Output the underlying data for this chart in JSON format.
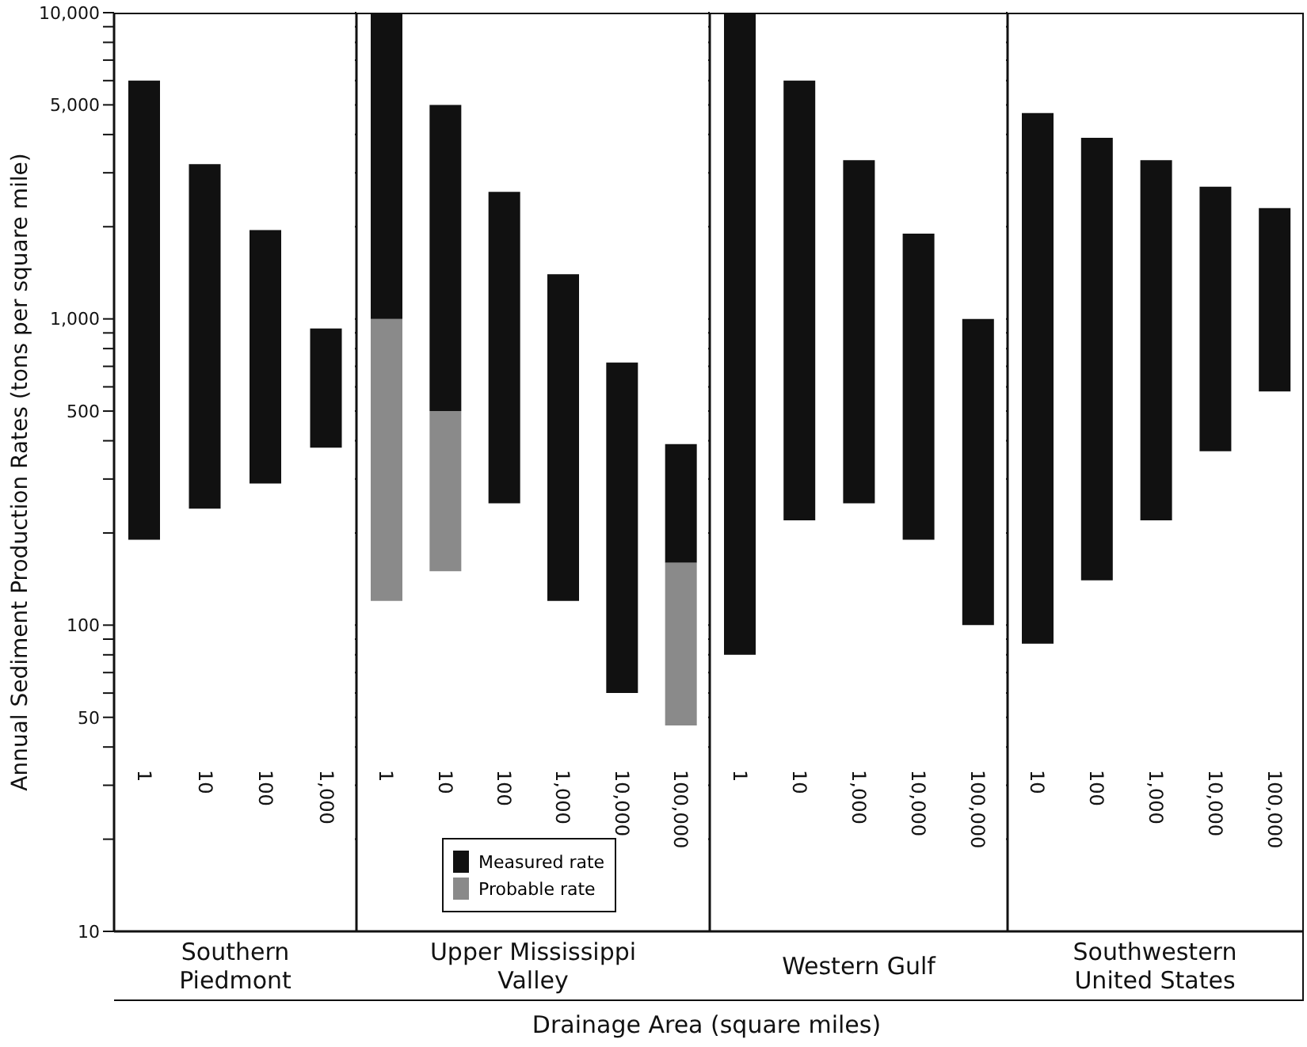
{
  "chart_data": [
    {
      "type": "bar",
      "ylabel": "Annual Sediment Production Rates (tons per square mile)",
      "xlabel": "Southern Piedmont",
      "categories": [
        "1",
        "10",
        "100",
        "1,000"
      ],
      "base": [
        190,
        240,
        290,
        380
      ],
      "values": [
        5810,
        2960,
        1660,
        550
      ],
      "color": "#111111",
      "log": true,
      "ylim": [
        10,
        10000
      ],
      "yticks": [
        10,
        {
          "value": 20,
          "label": null
        },
        {
          "value": 30,
          "label": null
        },
        {
          "value": 40,
          "label": null
        },
        50,
        {
          "value": 60,
          "label": null
        },
        {
          "value": 70,
          "label": null
        },
        {
          "value": 80,
          "label": null
        },
        {
          "value": 90,
          "label": null
        },
        100,
        {
          "value": 200,
          "label": null
        },
        {
          "value": 300,
          "label": null
        },
        {
          "value": 400,
          "label": null
        },
        500,
        {
          "value": 600,
          "label": null
        },
        {
          "value": 700,
          "label": null
        },
        {
          "value": 800,
          "label": null
        },
        {
          "value": 900,
          "label": null
        },
        {
          "value": 1000,
          "label": "1,000"
        },
        {
          "value": 2000,
          "label": null
        },
        {
          "value": 3000,
          "label": null
        },
        {
          "value": 4000,
          "label": null
        },
        {
          "value": 5000,
          "label": "5,000"
        },
        {
          "value": 6000,
          "label": null
        },
        {
          "value": 7000,
          "label": null
        },
        {
          "value": 8000,
          "label": null
        },
        {
          "value": 9000,
          "label": null
        },
        {
          "value": 10000,
          "label": "10,000"
        }
      ]
    },
    {
      "type": "bar",
      "xlabel": "Upper Mississippi Valley",
      "annotations": [
        "Drainage Area (square miles)"
      ],
      "categories": [
        "1",
        "10",
        "100",
        "1,000",
        "10,000",
        "100,000"
      ],
      "legend": "bottom",
      "series": [
        {
          "name": "Probable rate",
          "color": "#8a8a8a",
          "base": [
            120,
            150,
            null,
            null,
            null,
            47
          ],
          "values": [
            880,
            350,
            null,
            null,
            null,
            113
          ]
        },
        {
          "name": "Measured rate",
          "color": "#111111",
          "base": [
            1000,
            500,
            250,
            120,
            60,
            160
          ],
          "values": [
            9000,
            4500,
            2350,
            1280,
            660,
            230
          ]
        }
      ],
      "log": true,
      "tick_labels": "x",
      "ylim": [
        10,
        10000
      ],
      "yticks": [
        10,
        20,
        30,
        40,
        50,
        60,
        70,
        80,
        90,
        100,
        200,
        300,
        400,
        500,
        600,
        700,
        800,
        900,
        1000,
        2000,
        3000,
        4000,
        5000,
        6000,
        7000,
        8000,
        9000,
        10000
      ]
    },
    {
      "type": "bar",
      "xlabel": "Western Gulf",
      "categories": [
        "1",
        "10",
        "1,000",
        "10,000",
        "100,000"
      ],
      "base": [
        80,
        220,
        250,
        190,
        100
      ],
      "values": [
        9920,
        5780,
        3050,
        1710,
        900
      ],
      "color": "#111111",
      "log": true,
      "tick_labels": "x",
      "ylim": [
        10,
        10000
      ],
      "yticks": [
        10,
        20,
        30,
        40,
        50,
        60,
        70,
        80,
        90,
        100,
        200,
        300,
        400,
        500,
        600,
        700,
        800,
        900,
        1000,
        2000,
        3000,
        4000,
        5000,
        6000,
        7000,
        8000,
        9000,
        10000
      ]
    },
    {
      "type": "bar",
      "xlabel": "Southwestern United States",
      "categories": [
        "10",
        "100",
        "1,000",
        "10,000",
        "100,000"
      ],
      "base": [
        87,
        140,
        220,
        370,
        580
      ],
      "values": [
        4613,
        3760,
        3080,
        2330,
        1720
      ],
      "color": "#111111",
      "log": true,
      "tick_labels": "x",
      "ylim": [
        10,
        10000
      ],
      "yticks": [
        10,
        20,
        30,
        40,
        50,
        60,
        70,
        80,
        90,
        100,
        200,
        300,
        400,
        500,
        600,
        700,
        800,
        900,
        1000,
        2000,
        3000,
        4000,
        5000,
        6000,
        7000,
        8000,
        9000,
        10000
      ]
    }
  ]
}
